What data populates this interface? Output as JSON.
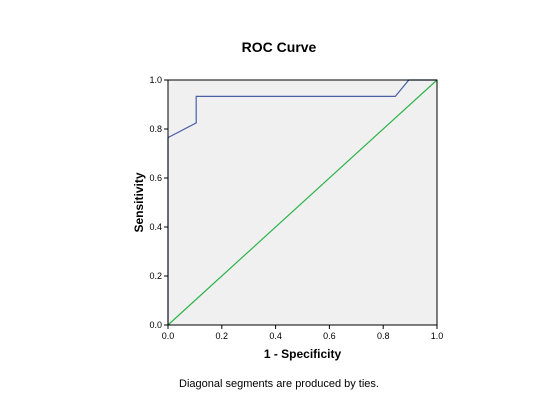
{
  "chart_data": {
    "type": "line",
    "title": "ROC Curve",
    "xlabel": "1 - Specificity",
    "ylabel": "Sensitivity",
    "xlim": [
      0,
      1
    ],
    "ylim": [
      0,
      1
    ],
    "x_ticks": [
      "0.0",
      "0.2",
      "0.4",
      "0.6",
      "0.8",
      "1.0"
    ],
    "y_ticks": [
      "0.0",
      "0.2",
      "0.4",
      "0.6",
      "0.8",
      "1.0"
    ],
    "grid": false,
    "legend": "none",
    "series": [
      {
        "color": "#4a5fa8",
        "points": [
          [
            0.0,
            0.0
          ],
          [
            0.0,
            0.765
          ],
          [
            0.105,
            0.825
          ],
          [
            0.105,
            0.933
          ],
          [
            0.845,
            0.933
          ],
          [
            0.895,
            1.0
          ],
          [
            1.0,
            1.0
          ]
        ]
      },
      {
        "color": "#2db34a",
        "points": [
          [
            0.0,
            0.0
          ],
          [
            1.0,
            1.0
          ]
        ]
      }
    ],
    "plot_background": "#f0f0f0",
    "footnote": "Diagonal segments are produced by ties."
  }
}
